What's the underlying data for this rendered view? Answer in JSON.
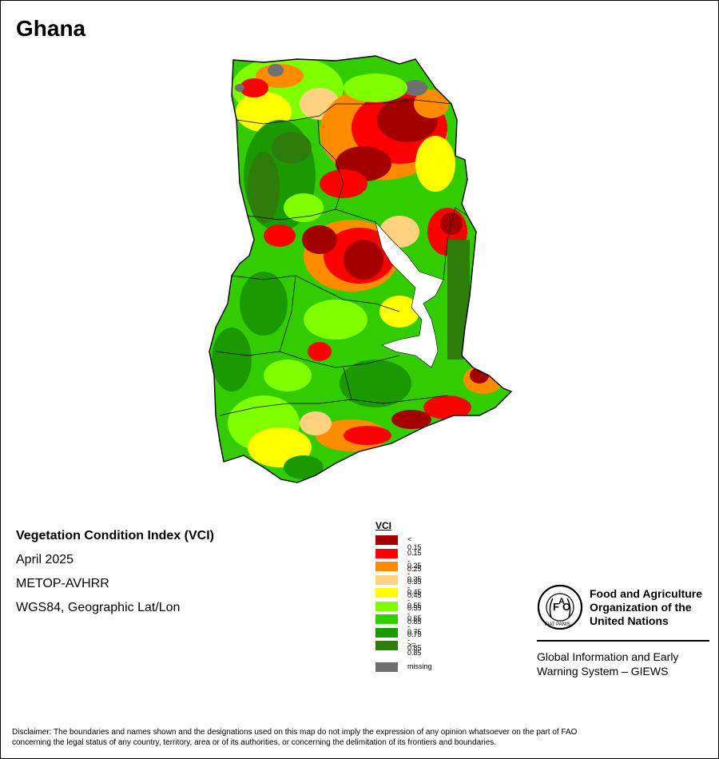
{
  "map": {
    "country": "Ghana",
    "index_name": "Vegetation Condition Index (VCI)",
    "period": "April 2025",
    "sensor": "METOP-AVHRR",
    "projection": "WGS84, Geographic Lat/Lon"
  },
  "legend": {
    "title": "VCI",
    "classes": [
      {
        "label": "< 0.15",
        "color": "#a50000"
      },
      {
        "label": "0.15 - 0.25",
        "color": "#ff0000"
      },
      {
        "label": "0.25 - 0.35",
        "color": "#ff8c00"
      },
      {
        "label": "0.35 - 0.45",
        "color": "#ffd27f"
      },
      {
        "label": "0.45 - 0.55",
        "color": "#ffff00"
      },
      {
        "label": "0.55 - 0.65",
        "color": "#7fff00"
      },
      {
        "label": "0.65 - 0.75",
        "color": "#33cc00"
      },
      {
        "label": "0.75 - 0.85",
        "color": "#1a9900"
      },
      {
        "label": ">= 0.85",
        "color": "#2e7d0a"
      }
    ],
    "missing": {
      "label": "missing",
      "color": "#707070"
    }
  },
  "organization": {
    "name_line1": "Food and Agriculture",
    "name_line2": "Organization of the",
    "name_line3": "United Nations",
    "giews_line1": "Global Information and Early",
    "giews_line2": "Warning System – GIEWS"
  },
  "disclaimer": {
    "line1": "Disclaimer: The boundaries and names shown and the designations used on this map do not imply the expression of any opinion whatsoever on the part of FAO",
    "line2": "concerning the legal status of any country, territory, area or of its authorities, or concerning the delimitation of its frontiers and boundaries."
  }
}
